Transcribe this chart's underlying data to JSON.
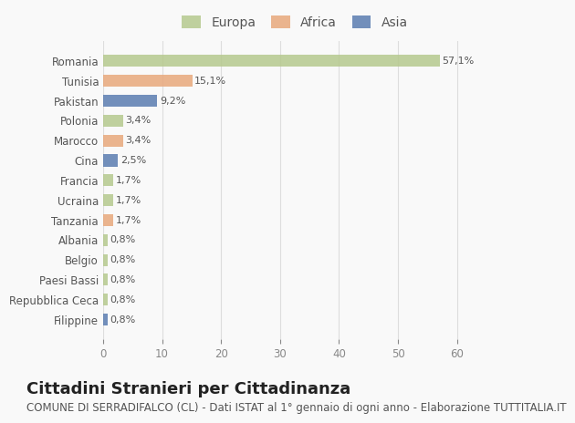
{
  "countries": [
    "Filippine",
    "Repubblica Ceca",
    "Paesi Bassi",
    "Belgio",
    "Albania",
    "Tanzania",
    "Ucraina",
    "Francia",
    "Cina",
    "Marocco",
    "Polonia",
    "Pakistan",
    "Tunisia",
    "Romania"
  ],
  "values": [
    0.8,
    0.8,
    0.8,
    0.8,
    0.8,
    1.7,
    1.7,
    1.7,
    2.5,
    3.4,
    3.4,
    9.2,
    15.1,
    57.1
  ],
  "labels": [
    "0,8%",
    "0,8%",
    "0,8%",
    "0,8%",
    "0,8%",
    "1,7%",
    "1,7%",
    "1,7%",
    "2,5%",
    "3,4%",
    "3,4%",
    "9,2%",
    "15,1%",
    "57,1%"
  ],
  "colors": [
    "#5b7db1",
    "#b5c98e",
    "#b5c98e",
    "#b5c98e",
    "#b5c98e",
    "#e8a87c",
    "#b5c98e",
    "#b5c98e",
    "#5b7db1",
    "#e8a87c",
    "#b5c98e",
    "#5b7db1",
    "#e8a87c",
    "#b5c98e"
  ],
  "continent": [
    "Asia",
    "Europa",
    "Europa",
    "Europa",
    "Europa",
    "Africa",
    "Europa",
    "Europa",
    "Asia",
    "Africa",
    "Europa",
    "Asia",
    "Africa",
    "Europa"
  ],
  "legend_labels": [
    "Europa",
    "Africa",
    "Asia"
  ],
  "legend_colors": [
    "#b5c98e",
    "#e8a87c",
    "#5b7db1"
  ],
  "title": "Cittadini Stranieri per Cittadinanza",
  "subtitle": "COMUNE DI SERRADIFALCO (CL) - Dati ISTAT al 1° gennaio di ogni anno - Elaborazione TUTTITALIA.IT",
  "xlim": [
    0,
    65
  ],
  "xticks": [
    0,
    10,
    20,
    30,
    40,
    50,
    60
  ],
  "background_color": "#f9f9f9",
  "grid_color": "#dddddd",
  "bar_height": 0.6,
  "title_fontsize": 13,
  "subtitle_fontsize": 8.5,
  "label_fontsize": 8,
  "tick_fontsize": 8.5,
  "legend_fontsize": 10
}
